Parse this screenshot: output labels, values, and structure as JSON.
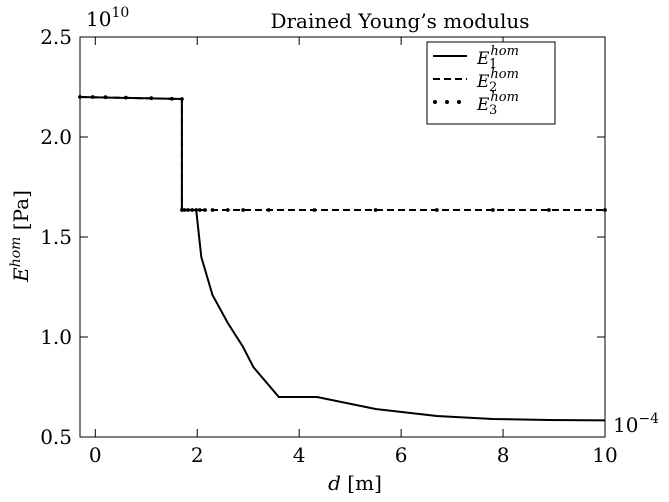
{
  "chart_data": {
    "type": "line",
    "title": "Drained Young’s modulus",
    "xlabel": {
      "main": "d",
      "unit": " [m]"
    },
    "ylabel": {
      "main": "E",
      "sup": "hom",
      "unit": " [Pa]"
    },
    "y_multiplier": {
      "base": "10",
      "exp": "10"
    },
    "x_multiplier": {
      "base": "10",
      "exp": "−4"
    },
    "xlim": [
      -0.3,
      10
    ],
    "ylim": [
      0.5,
      2.5
    ],
    "xticks": [
      0,
      2,
      4,
      6,
      8,
      10
    ],
    "xtick_labels": [
      "0",
      "2",
      "4",
      "6",
      "8",
      "10"
    ],
    "yticks": [
      0.5,
      1.0,
      1.5,
      2.0,
      2.5
    ],
    "ytick_labels": [
      "0.5",
      "1.0",
      "1.5",
      "2.0",
      "2.5"
    ],
    "legend_position": "top-right",
    "series": [
      {
        "name": {
          "base": "E",
          "sub": "1",
          "sup": "hom"
        },
        "style": "solid",
        "x": [
          -0.3,
          1.7,
          1.7,
          1.98,
          1.98,
          2.08,
          2.3,
          2.6,
          2.9,
          3.1,
          3.6,
          4.35,
          5.5,
          6.7,
          7.8,
          8.9,
          10
        ],
        "y": [
          2.2,
          2.19,
          1.635,
          1.635,
          1.635,
          1.4,
          1.21,
          1.07,
          0.95,
          0.85,
          0.7,
          0.7,
          0.64,
          0.605,
          0.59,
          0.585,
          0.583
        ]
      },
      {
        "name": {
          "base": "E",
          "sub": "2",
          "sup": "hom"
        },
        "style": "dashed",
        "x": [
          -0.3,
          1.7,
          1.7,
          10
        ],
        "y": [
          2.2,
          2.19,
          1.635,
          1.635
        ]
      },
      {
        "name": {
          "base": "E",
          "sub": "3",
          "sup": "hom"
        },
        "style": "dotted",
        "x": [
          -0.3,
          -0.05,
          0.2,
          0.6,
          1.1,
          1.5,
          1.7,
          1.7,
          1.75,
          1.82,
          1.9,
          1.98,
          2.05,
          2.15,
          2.3,
          2.6,
          2.9,
          3.4,
          4.3,
          5.5,
          6.7,
          7.8,
          8.9,
          10
        ],
        "y": [
          2.2,
          2.2,
          2.199,
          2.197,
          2.194,
          2.191,
          2.19,
          1.635,
          1.635,
          1.635,
          1.635,
          1.635,
          1.635,
          1.635,
          1.635,
          1.635,
          1.635,
          1.635,
          1.635,
          1.635,
          1.635,
          1.635,
          1.635,
          1.635
        ]
      }
    ]
  }
}
